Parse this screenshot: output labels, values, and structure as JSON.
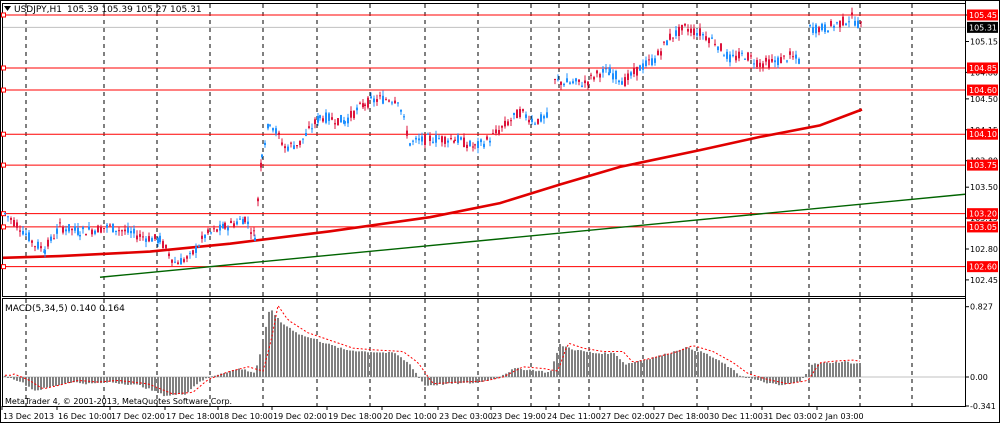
{
  "header": {
    "symbol_menu_icon": "triangle-down-icon",
    "symbol": "USDJPY,H1",
    "ohlc": "105.39 105.39 105.27 105.31"
  },
  "price_axis": {
    "ticks": [
      "105.45",
      "105.15",
      "104.80",
      "104.50",
      "104.15",
      "103.80",
      "103.50",
      "103.15",
      "102.80",
      "102.45"
    ],
    "current_price": "105.31",
    "levels": [
      "105.45",
      "104.85",
      "104.60",
      "104.10",
      "103.75",
      "103.20",
      "103.05",
      "102.60"
    ]
  },
  "indicator": {
    "name": "MACD(5,34,5) 0.140 0.164",
    "ticks": [
      "0.827",
      "0.00",
      "-0.341"
    ]
  },
  "time_axis": [
    "13 Dec 2013",
    "16 Dec 10:00",
    "17 Dec 02:00",
    "17 Dec 18:00",
    "18 Dec 10:00",
    "19 Dec 02:00",
    "19 Dec 18:00",
    "20 Dec 10:00",
    "23 Dec 03:00",
    "23 Dec 19:00",
    "24 Dec 11:00",
    "27 Dec 02:00",
    "27 Dec 18:00",
    "30 Dec 11:00",
    "31 Dec 03:00",
    "2 Jan 03:00"
  ],
  "copyright": "MetaTrader 4, © 2001-2013, MetaQuotes Software Corp.",
  "colors": {
    "bull": "#1E90FF",
    "bear": "#DC143C",
    "level_line": "#FF0000",
    "ma_line": "#E00000",
    "trend_line": "#006400",
    "macd_hist": "#808080",
    "signal": "#FF0000"
  }
}
